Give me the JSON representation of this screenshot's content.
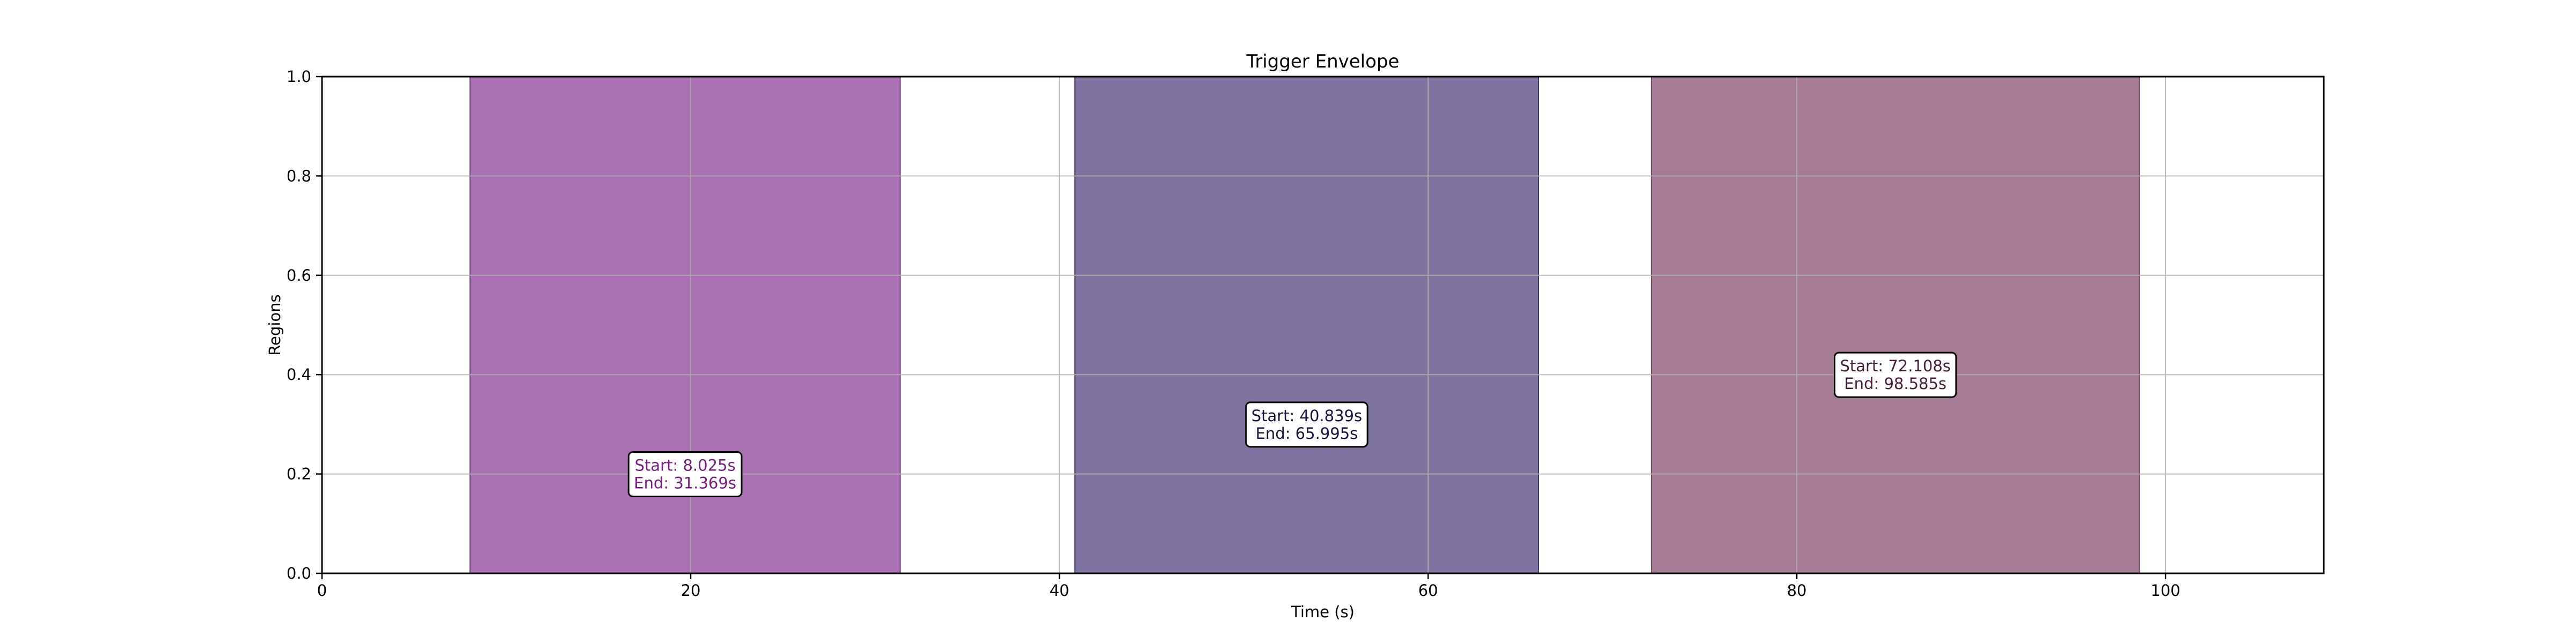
{
  "chart_data": {
    "type": "span",
    "title": "Trigger Envelope",
    "xlabel": "Time (s)",
    "ylabel": "Regions",
    "xlim": [
      0,
      108.585
    ],
    "ylim": [
      0,
      1.0
    ],
    "x_ticks": [
      0,
      20,
      40,
      60,
      80,
      100
    ],
    "x_tick_labels": [
      "0",
      "20",
      "40",
      "60",
      "80",
      "100"
    ],
    "y_ticks": [
      0.0,
      0.2,
      0.4,
      0.6,
      0.8,
      1.0
    ],
    "y_tick_labels": [
      "0.0",
      "0.2",
      "0.4",
      "0.6",
      "0.8",
      "1.0"
    ],
    "grid": true,
    "regions": [
      {
        "start": 8.025,
        "end": 31.369,
        "fill": "#a970b2",
        "edge": "#7a4a85",
        "text_color": "#7b1c85",
        "label_x": 19.697,
        "label_y": 0.2,
        "label_lines": [
          "Start: 8.025s",
          "End: 31.369s"
        ]
      },
      {
        "start": 40.839,
        "end": 65.995,
        "fill": "#7d739e",
        "edge": "#3f3566",
        "text_color": "#1a1340",
        "label_x": 53.417,
        "label_y": 0.3,
        "label_lines": [
          "Start: 40.839s",
          "End: 65.995s"
        ]
      },
      {
        "start": 72.108,
        "end": 98.585,
        "fill": "#a67b96",
        "edge": "#6e4a61",
        "text_color": "#4a1f3c",
        "label_x": 85.346,
        "label_y": 0.4,
        "label_lines": [
          "Start: 72.108s",
          "End: 98.585s"
        ]
      }
    ]
  }
}
